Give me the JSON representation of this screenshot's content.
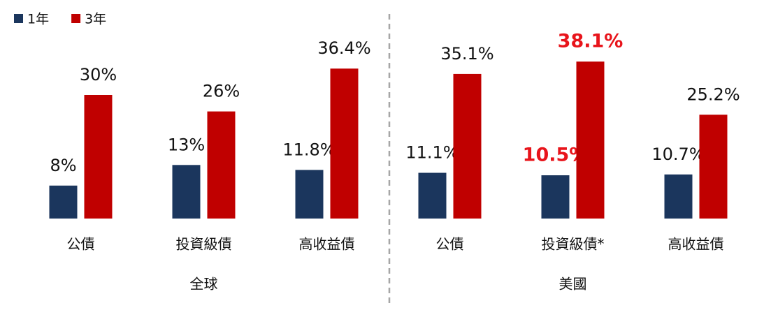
{
  "chart_data": {
    "type": "bar",
    "categories": [
      "公債",
      "投資級債",
      "高收益債",
      "公債",
      "投資級債*",
      "高收益債"
    ],
    "groups": [
      {
        "name": "全球",
        "size": 3
      },
      {
        "name": "美國",
        "size": 3
      }
    ],
    "series": [
      {
        "name": "1年",
        "color": "#1b365d",
        "values": [
          8,
          13,
          11.8,
          11.1,
          10.5,
          10.7
        ],
        "value_labels": [
          "8%",
          "13%",
          "11.8%",
          "11.1%",
          "10.5%",
          "10.7%"
        ]
      },
      {
        "name": "3年",
        "color": "#c00000",
        "values": [
          30,
          26,
          36.4,
          35.1,
          38.1,
          25.2
        ],
        "value_labels": [
          "30%",
          "26%",
          "36.4%",
          "35.1%",
          "38.1%",
          "25.2%"
        ]
      }
    ],
    "highlight": [
      4
    ],
    "highlight_color": "#e8141b",
    "legend": "top-left"
  }
}
